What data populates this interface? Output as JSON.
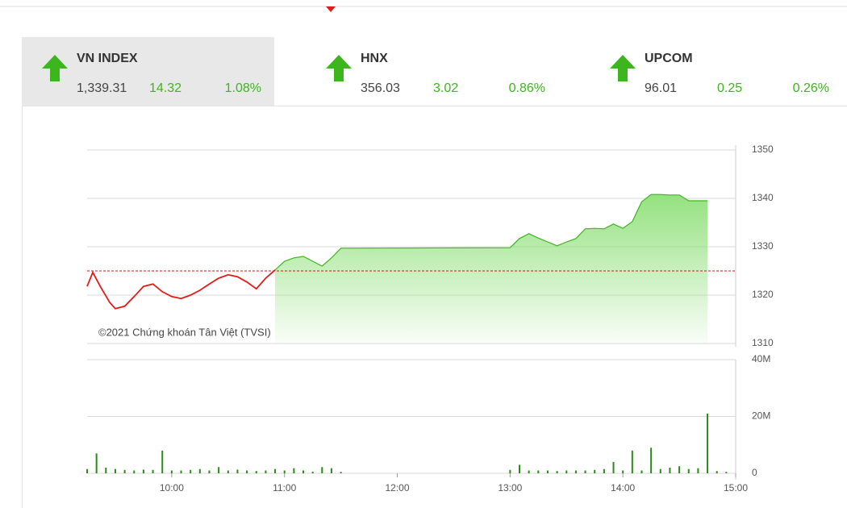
{
  "tabs": [
    {
      "name": "VN INDEX",
      "value": "1,339.31",
      "change": "14.32",
      "percent": "1.08%",
      "active": true
    },
    {
      "name": "HNX",
      "value": "356.03",
      "change": "3.02",
      "percent": "0.86%",
      "active": false
    },
    {
      "name": "UPCOM",
      "value": "96.01",
      "change": "0.25",
      "percent": "0.26%",
      "active": false
    }
  ],
  "chart_data": [
    {
      "type": "line",
      "annotation": "©2021 Chứng khoán Tân Việt (TVSI)",
      "x": [
        "09:15",
        "09:18",
        "09:22",
        "09:27",
        "09:30",
        "09:35",
        "09:40",
        "09:45",
        "09:50",
        "09:55",
        "10:00",
        "10:05",
        "10:10",
        "10:15",
        "10:20",
        "10:25",
        "10:30",
        "10:35",
        "10:40",
        "10:45",
        "10:50",
        "10:55",
        "11:00",
        "11:05",
        "11:10",
        "11:15",
        "11:20",
        "11:25",
        "11:30",
        "13:00",
        "13:05",
        "13:10",
        "13:15",
        "13:20",
        "13:25",
        "13:30",
        "13:35",
        "13:40",
        "13:45",
        "13:50",
        "13:55",
        "14:00",
        "14:05",
        "14:10",
        "14:15",
        "14:20",
        "14:25",
        "14:30",
        "14:35",
        "14:45"
      ],
      "values": [
        1321.8,
        1324.7,
        1321.8,
        1318.5,
        1317.2,
        1317.7,
        1319.7,
        1321.8,
        1322.3,
        1320.7,
        1319.7,
        1319.3,
        1320,
        1321,
        1322.3,
        1323.5,
        1324.2,
        1323.8,
        1322.7,
        1321.3,
        1323.5,
        1325.2,
        1327,
        1327.7,
        1328,
        1327,
        1326,
        1327.7,
        1329.7,
        1329.8,
        1331.7,
        1332.7,
        1331.8,
        1331,
        1330.2,
        1331,
        1331.7,
        1333.7,
        1333.8,
        1333.7,
        1334.7,
        1333.8,
        1335.2,
        1339.3,
        1340.8,
        1340.8,
        1340.7,
        1340.7,
        1339.5,
        1339.5
      ],
      "reference": 1324.99,
      "color": "#3db51e",
      "down_color": "#e01b1b",
      "xlim": [
        "09:15",
        "15:00"
      ],
      "ylim": [
        1310,
        1350
      ],
      "yticks": [
        1310,
        1320,
        1330,
        1340,
        1350
      ],
      "grid": true
    },
    {
      "type": "bar",
      "color": "#2a8a1a",
      "x": [
        "09:15",
        "09:20",
        "09:25",
        "09:30",
        "09:35",
        "09:40",
        "09:45",
        "09:50",
        "09:55",
        "10:00",
        "10:05",
        "10:10",
        "10:15",
        "10:20",
        "10:25",
        "10:30",
        "10:35",
        "10:40",
        "10:45",
        "10:50",
        "10:55",
        "11:00",
        "11:05",
        "11:10",
        "11:15",
        "11:20",
        "11:25",
        "11:30",
        "13:00",
        "13:05",
        "13:10",
        "13:15",
        "13:20",
        "13:25",
        "13:30",
        "13:35",
        "13:40",
        "13:45",
        "13:50",
        "13:55",
        "14:00",
        "14:05",
        "14:10",
        "14:15",
        "14:20",
        "14:25",
        "14:30",
        "14:35",
        "14:40",
        "14:45",
        "14:50",
        "14:55"
      ],
      "values": [
        1.5,
        7,
        2,
        1.5,
        1.2,
        1,
        1.3,
        1.2,
        8,
        1,
        1,
        1.2,
        1.5,
        1,
        2.2,
        1,
        1.3,
        1,
        0.8,
        1,
        1.5,
        1,
        1.8,
        1,
        0.6,
        2.2,
        1.8,
        0.5,
        1.2,
        3,
        1,
        1,
        1,
        0.8,
        1,
        1,
        1,
        1.2,
        1.5,
        4,
        1,
        8,
        1,
        9,
        1.5,
        2,
        2.5,
        1.5,
        1.8,
        21,
        0.8,
        0.5
      ],
      "xlim": [
        "09:15",
        "15:00"
      ],
      "ylim": [
        0,
        40
      ],
      "yticks": [
        0,
        {
          "value": 20,
          "label": "20M"
        },
        {
          "value": 40,
          "label": "40M"
        }
      ],
      "xticks": [
        "10:00",
        "11:00",
        "12:00",
        "13:00",
        "14:00",
        "15:00"
      ],
      "grid": true
    }
  ]
}
